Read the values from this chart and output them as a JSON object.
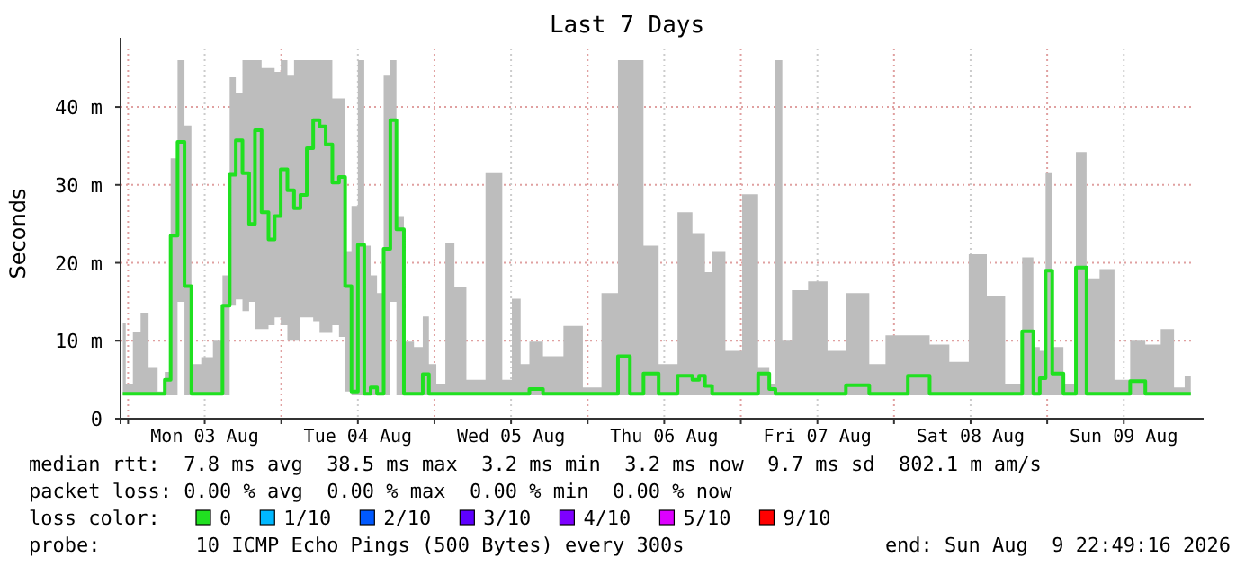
{
  "chart_data": {
    "type": "step",
    "title": "Last 7 Days",
    "ylabel": "Seconds",
    "legend_title": "loss color:",
    "legend": "bottom",
    "grid": true,
    "marker": "none",
    "xlim": [
      "2026-08-02T22:49",
      "2026-08-09T22:49"
    ],
    "xticks": [
      {
        "value": "2026-08-03T00:00",
        "label": null
      },
      {
        "value": "2026-08-03T12:00",
        "label": "Mon 03 Aug"
      },
      {
        "value": "2026-08-04T00:00",
        "label": null
      },
      {
        "value": "2026-08-04T12:00",
        "label": "Tue 04 Aug"
      },
      {
        "value": "2026-08-05T00:00",
        "label": null
      },
      {
        "value": "2026-08-05T12:00",
        "label": "Wed 05 Aug"
      },
      {
        "value": "2026-08-06T00:00",
        "label": null
      },
      {
        "value": "2026-08-06T12:00",
        "label": "Thu 06 Aug"
      },
      {
        "value": "2026-08-07T00:00",
        "label": null
      },
      {
        "value": "2026-08-07T12:00",
        "label": "Fri 07 Aug"
      },
      {
        "value": "2026-08-08T00:00",
        "label": null
      },
      {
        "value": "2026-08-08T12:00",
        "label": "Sat 08 Aug"
      },
      {
        "value": "2026-08-09T00:00",
        "label": null
      },
      {
        "value": "2026-08-09T12:00",
        "label": "Sun 09 Aug"
      }
    ],
    "ylim": [
      0,
      47.5
    ],
    "yticks": [
      0,
      {
        "value": 10,
        "label": "10 m"
      },
      {
        "value": 20,
        "label": "20 m"
      },
      {
        "value": 30,
        "label": "30 m"
      },
      {
        "value": 40,
        "label": "40 m"
      }
    ],
    "x": [
      "2026-08-02T23:10",
      "2026-08-03T00:05",
      "2026-08-03T01:25",
      "2026-08-03T02:30",
      "2026-08-03T03:55",
      "2026-08-03T05:20",
      "2026-08-03T06:10",
      "2026-08-03T07:10",
      "2026-08-03T08:20",
      "2026-08-03T09:20",
      "2026-08-03T10:30",
      "2026-08-03T12:25",
      "2026-08-03T14:10",
      "2026-08-03T15:25",
      "2026-08-03T16:25",
      "2026-08-03T17:20",
      "2026-08-03T18:30",
      "2026-08-03T19:25",
      "2026-08-03T20:20",
      "2026-08-03T21:30",
      "2026-08-03T22:30",
      "2026-08-03T23:25",
      "2026-08-04T00:25",
      "2026-08-04T01:30",
      "2026-08-04T02:30",
      "2026-08-04T03:30",
      "2026-08-04T04:30",
      "2026-08-04T05:30",
      "2026-08-04T06:30",
      "2026-08-04T07:25",
      "2026-08-04T08:35",
      "2026-08-04T09:30",
      "2026-08-04T10:30",
      "2026-08-04T11:30",
      "2026-08-04T12:30",
      "2026-08-04T13:30",
      "2026-08-04T14:30",
      "2026-08-04T15:30",
      "2026-08-04T16:35",
      "2026-08-04T17:35",
      "2026-08-04T18:30",
      "2026-08-04T19:55",
      "2026-08-04T21:40",
      "2026-08-04T22:40",
      "2026-08-04T23:35",
      "2026-08-05T01:00",
      "2026-08-05T02:25",
      "2026-08-05T03:50",
      "2026-08-05T06:10",
      "2026-08-05T09:50",
      "2026-08-05T11:25",
      "2026-08-05T12:50",
      "2026-08-05T14:10",
      "2026-08-05T15:35",
      "2026-08-05T18:25",
      "2026-08-05T22:00",
      "2026-08-06T00:30",
      "2026-08-06T03:50",
      "2026-08-06T05:40",
      "2026-08-06T07:35",
      "2026-08-06T09:55",
      "2026-08-06T12:20",
      "2026-08-06T15:50",
      "2026-08-06T17:00",
      "2026-08-06T17:55",
      "2026-08-06T18:50",
      "2026-08-06T20:10",
      "2026-08-06T23:00",
      "2026-08-07T01:25",
      "2026-08-07T04:00",
      "2026-08-07T04:55",
      "2026-08-07T05:55",
      "2026-08-07T07:05",
      "2026-08-07T08:55",
      "2026-08-07T12:10",
      "2026-08-07T15:00",
      "2026-08-07T17:55",
      "2026-08-07T19:05",
      "2026-08-07T21:10",
      "2026-08-08T00:10",
      "2026-08-08T04:10",
      "2026-08-08T07:00",
      "2026-08-08T10:20",
      "2026-08-08T13:05",
      "2026-08-08T16:00",
      "2026-08-08T18:50",
      "2026-08-08T21:20",
      "2026-08-08T22:20",
      "2026-08-08T23:20",
      "2026-08-09T00:10",
      "2026-08-09T01:25",
      "2026-08-09T03:40",
      "2026-08-09T05:20",
      "2026-08-09T07:00",
      "2026-08-09T09:25",
      "2026-08-09T11:40",
      "2026-08-09T14:20",
      "2026-08-09T16:25",
      "2026-08-09T19:10",
      "2026-08-09T20:35",
      "2026-08-09T22:30"
    ],
    "series": [
      {
        "name": "0",
        "color": "#20e020",
        "values": [
          3.2,
          3.2,
          3.2,
          3.2,
          3.2,
          3.2,
          5,
          23.5,
          35.5,
          17,
          3.2,
          3.2,
          3.2,
          14.5,
          31.3,
          35.7,
          31.5,
          25,
          37,
          26.5,
          23,
          26,
          32,
          29.3,
          27,
          28.7,
          34.7,
          38.3,
          37.5,
          35.2,
          30.3,
          31,
          17,
          3.5,
          22.3,
          3.2,
          4,
          3.2,
          21.8,
          38.3,
          24.3,
          3.2,
          3.2,
          5.7,
          3.2,
          3.2,
          3.2,
          3.2,
          3.2,
          3.2,
          3.2,
          3.2,
          3.2,
          3.8,
          3.2,
          3.2,
          3.2,
          3.2,
          8,
          3.2,
          5.8,
          3.2,
          5.5,
          5,
          5.5,
          4.2,
          3.2,
          3.2,
          3.2,
          5.8,
          3.8,
          3.2,
          3.2,
          3.2,
          3.2,
          3.2,
          4.3,
          4.3,
          3.2,
          3.2,
          5.5,
          3.2,
          3.2,
          3.2,
          3.2,
          3.2,
          11.2,
          3.2,
          5.2,
          19,
          5.8,
          3.2,
          19.4,
          3.2,
          3.2,
          3.2,
          4.8,
          3.2,
          3.2,
          3.2,
          3.2
        ],
        "lower": [
          3,
          3,
          3,
          3,
          3,
          3,
          3,
          3,
          15,
          3,
          3,
          3,
          3,
          3,
          14.5,
          15.3,
          13.8,
          15,
          11.5,
          11.5,
          12,
          13,
          12,
          10,
          10,
          13,
          13,
          12.5,
          11,
          11,
          12,
          10.5,
          3.5,
          3,
          3,
          3,
          3,
          3,
          3,
          15,
          3,
          3,
          3,
          3,
          3,
          3,
          3,
          3,
          3,
          3,
          3,
          3,
          3,
          3,
          3,
          3,
          3,
          3,
          3,
          3,
          3,
          3,
          3,
          3,
          3,
          3,
          3,
          3,
          3,
          3,
          3,
          3,
          3,
          3,
          3,
          3,
          3,
          3,
          3,
          3,
          3,
          3,
          3,
          3,
          3,
          3,
          3,
          3,
          3,
          3,
          3,
          3,
          3,
          3,
          3,
          3,
          3,
          3,
          3,
          3,
          3
        ],
        "upper": [
          12.3,
          4.5,
          11.1,
          13.6,
          6.5,
          3.5,
          6,
          33.4,
          46,
          37.6,
          7,
          7.9,
          10,
          18.4,
          43.8,
          41.8,
          46,
          46,
          46,
          45,
          45,
          44.5,
          46,
          44,
          46,
          46,
          46,
          46,
          46,
          46,
          41.1,
          41.1,
          21.5,
          27.3,
          46,
          22.2,
          18.4,
          16.1,
          44,
          46,
          26,
          9.9,
          9.2,
          13.1,
          7,
          4.5,
          22.6,
          16.9,
          5,
          31.5,
          5,
          15.4,
          7,
          9.9,
          8,
          11.9,
          4,
          16.1,
          46,
          46,
          22.2,
          7,
          26.5,
          23.8,
          23.8,
          18.8,
          21.5,
          8.7,
          28.8,
          6.5,
          4.5,
          46,
          10,
          16.5,
          17.6,
          8.7,
          16.1,
          16.1,
          7,
          10.7,
          10.7,
          9.5,
          7.3,
          21.1,
          15.7,
          4.5,
          20.7,
          9.2,
          8.7,
          31.5,
          9.2,
          4.5,
          34.2,
          18,
          19.2,
          5,
          10,
          9.5,
          11.5,
          4,
          5.5
        ]
      },
      {
        "name": "1/10",
        "color": "#00b8ff",
        "values": [
          null,
          null,
          null,
          null,
          null,
          null,
          null,
          null,
          null,
          null,
          null,
          null,
          null,
          null,
          null,
          null,
          null,
          null,
          null,
          null,
          null,
          null,
          null,
          null,
          null,
          null,
          null,
          null,
          null,
          null,
          null,
          null,
          null,
          null,
          null,
          null,
          null,
          null,
          null,
          null,
          null,
          null,
          null,
          null,
          null,
          null,
          null,
          null,
          null,
          null,
          null,
          null,
          null,
          null,
          null,
          null,
          null,
          null,
          null,
          null,
          null,
          null,
          null,
          null,
          null,
          null,
          null,
          null,
          null,
          null,
          null,
          null,
          null,
          null,
          null,
          null,
          null,
          null,
          null,
          null,
          null,
          null,
          null,
          null,
          null,
          null,
          null,
          null,
          null,
          null,
          null,
          null,
          null,
          null,
          null,
          null,
          null,
          null,
          null,
          null,
          null
        ]
      },
      {
        "name": "2/10",
        "color": "#0059ff",
        "values": [
          null,
          null,
          null,
          null,
          null,
          null,
          null,
          null,
          null,
          null,
          null,
          null,
          null,
          null,
          null,
          null,
          null,
          null,
          null,
          null,
          null,
          null,
          null,
          null,
          null,
          null,
          null,
          null,
          null,
          null,
          null,
          null,
          null,
          null,
          null,
          null,
          null,
          null,
          null,
          null,
          null,
          null,
          null,
          null,
          null,
          null,
          null,
          null,
          null,
          null,
          null,
          null,
          null,
          null,
          null,
          null,
          null,
          null,
          null,
          null,
          null,
          null,
          null,
          null,
          null,
          null,
          null,
          null,
          null,
          null,
          null,
          null,
          null,
          null,
          null,
          null,
          null,
          null,
          null,
          null,
          null,
          null,
          null,
          null,
          null,
          null,
          null,
          null,
          null,
          null,
          null,
          null,
          null,
          null,
          null,
          null,
          null,
          null,
          null,
          null,
          null
        ]
      },
      {
        "name": "3/10",
        "color": "#5e00ff",
        "values": [
          null,
          null,
          null,
          null,
          null,
          null,
          null,
          null,
          null,
          null,
          null,
          null,
          null,
          null,
          null,
          null,
          null,
          null,
          null,
          null,
          null,
          null,
          null,
          null,
          null,
          null,
          null,
          null,
          null,
          null,
          null,
          null,
          null,
          null,
          null,
          null,
          null,
          null,
          null,
          null,
          null,
          null,
          null,
          null,
          null,
          null,
          null,
          null,
          null,
          null,
          null,
          null,
          null,
          null,
          null,
          null,
          null,
          null,
          null,
          null,
          null,
          null,
          null,
          null,
          null,
          null,
          null,
          null,
          null,
          null,
          null,
          null,
          null,
          null,
          null,
          null,
          null,
          null,
          null,
          null,
          null,
          null,
          null,
          null,
          null,
          null,
          null,
          null,
          null,
          null,
          null,
          null,
          null,
          null,
          null,
          null,
          null,
          null,
          null,
          null,
          null
        ]
      },
      {
        "name": "4/10",
        "color": "#7e00ff",
        "values": [
          null,
          null,
          null,
          null,
          null,
          null,
          null,
          null,
          null,
          null,
          null,
          null,
          null,
          null,
          null,
          null,
          null,
          null,
          null,
          null,
          null,
          null,
          null,
          null,
          null,
          null,
          null,
          null,
          null,
          null,
          null,
          null,
          null,
          null,
          null,
          null,
          null,
          null,
          null,
          null,
          null,
          null,
          null,
          null,
          null,
          null,
          null,
          null,
          null,
          null,
          null,
          null,
          null,
          null,
          null,
          null,
          null,
          null,
          null,
          null,
          null,
          null,
          null,
          null,
          null,
          null,
          null,
          null,
          null,
          null,
          null,
          null,
          null,
          null,
          null,
          null,
          null,
          null,
          null,
          null,
          null,
          null,
          null,
          null,
          null,
          null,
          null,
          null,
          null,
          null,
          null,
          null,
          null,
          null,
          null,
          null,
          null,
          null,
          null,
          null,
          null
        ]
      },
      {
        "name": "5/10",
        "color": "#dd00ff",
        "values": [
          null,
          null,
          null,
          null,
          null,
          null,
          null,
          null,
          null,
          null,
          null,
          null,
          null,
          null,
          null,
          null,
          null,
          null,
          null,
          null,
          null,
          null,
          null,
          null,
          null,
          null,
          null,
          null,
          null,
          null,
          null,
          null,
          null,
          null,
          null,
          null,
          null,
          null,
          null,
          null,
          null,
          null,
          null,
          null,
          null,
          null,
          null,
          null,
          null,
          null,
          null,
          null,
          null,
          null,
          null,
          null,
          null,
          null,
          null,
          null,
          null,
          null,
          null,
          null,
          null,
          null,
          null,
          null,
          null,
          null,
          null,
          null,
          null,
          null,
          null,
          null,
          null,
          null,
          null,
          null,
          null,
          null,
          null,
          null,
          null,
          null,
          null,
          null,
          null,
          null,
          null,
          null,
          null,
          null,
          null,
          null,
          null,
          null,
          null,
          null,
          null
        ]
      },
      {
        "name": "9/10",
        "color": "#ff0000",
        "values": [
          null,
          null,
          null,
          null,
          null,
          null,
          null,
          null,
          null,
          null,
          null,
          null,
          null,
          null,
          null,
          null,
          null,
          null,
          null,
          null,
          null,
          null,
          null,
          null,
          null,
          null,
          null,
          null,
          null,
          null,
          null,
          null,
          null,
          null,
          null,
          null,
          null,
          null,
          null,
          null,
          null,
          null,
          null,
          null,
          null,
          null,
          null,
          null,
          null,
          null,
          null,
          null,
          null,
          null,
          null,
          null,
          null,
          null,
          null,
          null,
          null,
          null,
          null,
          null,
          null,
          null,
          null,
          null,
          null,
          null,
          null,
          null,
          null,
          null,
          null,
          null,
          null,
          null,
          null,
          null,
          null,
          null,
          null,
          null,
          null,
          null,
          null,
          null,
          null,
          null,
          null,
          null,
          null,
          null,
          null,
          null,
          null,
          null,
          null,
          null,
          null
        ]
      }
    ],
    "annotations": [
      "median rtt:  7.8 ms avg  38.5 ms max  3.2 ms min  3.2 ms now  9.7 ms sd  802.1 m am/s",
      "packet loss: 0.00 % avg  0.00 % max  0.00 % min  0.00 % now",
      "probe:        10 ICMP Echo Pings (500 Bytes) every 300s",
      "end: Sun Aug  9 22:49:16 2026"
    ]
  }
}
